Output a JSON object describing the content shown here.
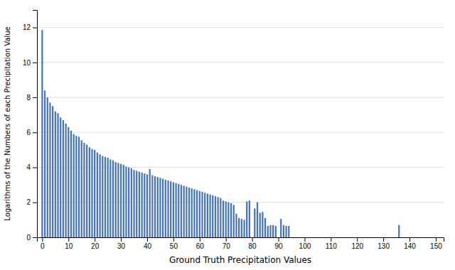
{
  "chart_data": {
    "type": "bar",
    "xlabel": "Ground Truth Precipitation Values",
    "ylabel": "Logarithms of the Numbers of each Precipitation Value",
    "color": "#4472C4",
    "x": [
      0,
      1,
      2,
      3,
      4,
      5,
      6,
      7,
      8,
      9,
      10,
      11,
      12,
      13,
      14,
      15,
      16,
      17,
      18,
      19,
      20,
      21,
      22,
      23,
      24,
      25,
      26,
      27,
      28,
      29,
      30,
      31,
      32,
      33,
      34,
      35,
      36,
      37,
      38,
      39,
      40,
      41,
      42,
      43,
      44,
      45,
      46,
      47,
      48,
      49,
      50,
      51,
      52,
      53,
      54,
      55,
      56,
      57,
      58,
      59,
      60,
      61,
      62,
      63,
      64,
      65,
      66,
      67,
      68,
      69,
      70,
      71,
      72,
      73,
      74,
      75,
      76,
      77,
      78,
      79,
      80,
      81,
      82,
      83,
      84,
      85,
      86,
      87,
      88,
      89,
      90,
      91,
      92,
      93,
      94,
      136
    ],
    "values": [
      11.85,
      8.4,
      8.0,
      7.7,
      7.5,
      7.2,
      7.1,
      6.85,
      6.7,
      6.5,
      6.3,
      6.1,
      5.9,
      5.8,
      5.75,
      5.55,
      5.4,
      5.3,
      5.15,
      5.05,
      5.0,
      4.85,
      4.75,
      4.65,
      4.6,
      4.55,
      4.45,
      4.4,
      4.3,
      4.25,
      4.2,
      4.15,
      4.05,
      4.0,
      3.95,
      3.85,
      3.8,
      3.75,
      3.7,
      3.65,
      3.6,
      3.9,
      3.55,
      3.5,
      3.45,
      3.4,
      3.35,
      3.3,
      3.25,
      3.2,
      3.15,
      3.1,
      3.05,
      3.0,
      2.95,
      2.9,
      2.85,
      2.8,
      2.75,
      2.7,
      2.65,
      2.6,
      2.55,
      2.5,
      2.45,
      2.4,
      2.35,
      2.3,
      2.25,
      2.1,
      2.05,
      2.0,
      1.95,
      1.85,
      1.35,
      1.1,
      1.05,
      1.0,
      2.05,
      2.1,
      0.0,
      1.65,
      2.0,
      1.4,
      1.45,
      1.1,
      0.65,
      0.7,
      0.7,
      0.65,
      0.0,
      1.05,
      0.7,
      0.65,
      0.65,
      0.7
    ],
    "xlim": [
      -2,
      153
    ],
    "xticks": [
      0,
      10,
      20,
      30,
      40,
      50,
      60,
      70,
      80,
      90,
      100,
      110,
      120,
      130,
      140,
      150
    ],
    "ylim": [
      0,
      13
    ],
    "yticks": [
      0,
      2,
      4,
      6,
      8,
      10,
      12
    ],
    "grid": true
  }
}
